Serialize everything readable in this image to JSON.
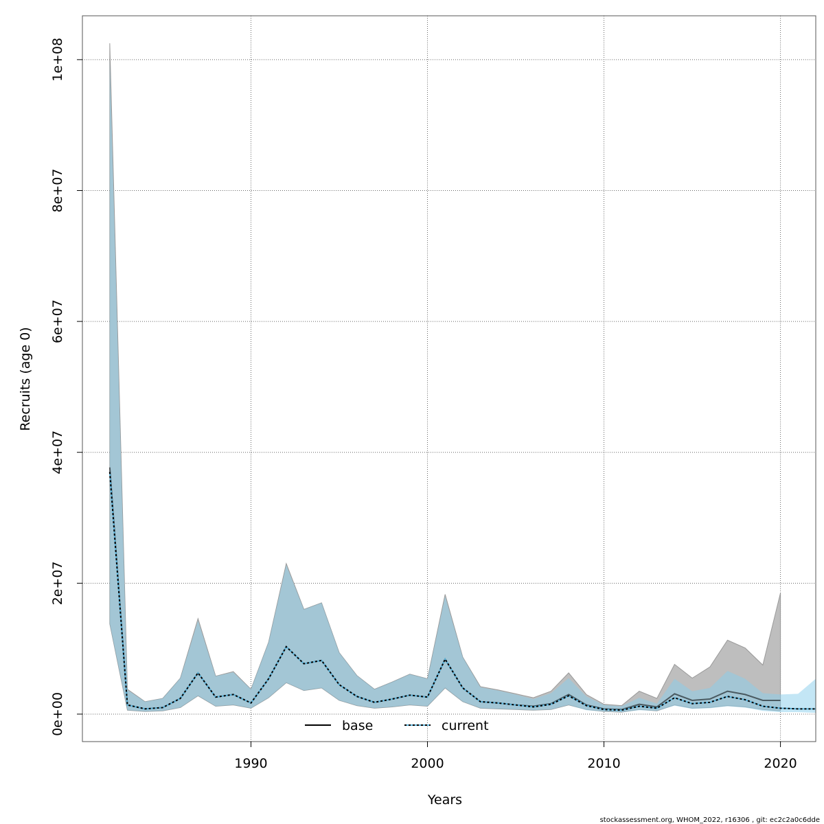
{
  "chart_data": {
    "type": "area",
    "title": "",
    "xlabel": "Years",
    "ylabel": "Recruits (age 0)",
    "xlim": [
      1980.45,
      2022.0
    ],
    "ylim": [
      -4200000,
      106700000
    ],
    "x_ticks": [
      1990,
      2000,
      2010,
      2020
    ],
    "x_tick_labels": [
      "1990",
      "2000",
      "2010",
      "2020"
    ],
    "y_ticks": [
      0,
      20000000,
      40000000,
      60000000,
      80000000,
      100000000
    ],
    "y_tick_labels": [
      "0e+00",
      "2e+07",
      "4e+07",
      "6e+07",
      "8e+07",
      "1e+08"
    ],
    "grid": true,
    "legend": {
      "placement": "bottom",
      "entries": [
        "base",
        "current"
      ]
    },
    "footer": "stockassessment.org, WHOM_2022, r16306 , git: ec2c2a0c6dde",
    "colors": {
      "base_band": "#bebebe",
      "current_band": "rgba(135,206,235,0.5)",
      "line": "#000000",
      "current_line_under": "#5ab4dc"
    },
    "series": [
      {
        "name": "base",
        "x": [
          1982,
          1983,
          1984,
          1985,
          1986,
          1987,
          1988,
          1989,
          1990,
          1991,
          1992,
          1993,
          1994,
          1995,
          1996,
          1997,
          1998,
          1999,
          2000,
          2001,
          2002,
          2003,
          2004,
          2005,
          2006,
          2007,
          2008,
          2009,
          2010,
          2011,
          2012,
          2013,
          2014,
          2015,
          2016,
          2017,
          2018,
          2019,
          2020
        ],
        "estimate": [
          37.7,
          1.4,
          0.8,
          1.0,
          2.4,
          6.3,
          2.6,
          3.0,
          1.7,
          5.4,
          10.3,
          7.7,
          8.2,
          4.5,
          2.7,
          1.8,
          2.3,
          2.9,
          2.6,
          8.4,
          4.0,
          1.9,
          1.7,
          1.4,
          1.2,
          1.6,
          3.0,
          1.4,
          0.8,
          0.7,
          1.5,
          1.1,
          3.1,
          2.1,
          2.3,
          3.5,
          3.0,
          2.1,
          2.1
        ],
        "low": [
          13.8,
          0.6,
          0.4,
          0.5,
          1.0,
          2.8,
          1.2,
          1.4,
          0.9,
          2.5,
          4.8,
          3.6,
          4.0,
          2.1,
          1.3,
          0.9,
          1.1,
          1.4,
          1.2,
          4.0,
          1.9,
          0.9,
          0.8,
          0.7,
          0.6,
          0.7,
          1.4,
          0.7,
          0.4,
          0.3,
          0.7,
          0.5,
          1.4,
          0.9,
          1.0,
          1.3,
          1.1,
          0.7,
          0.5
        ],
        "high": [
          102.5,
          3.8,
          1.9,
          2.4,
          5.5,
          14.6,
          5.8,
          6.5,
          3.8,
          11.0,
          23.0,
          16.0,
          17.0,
          9.4,
          5.9,
          3.8,
          4.9,
          6.1,
          5.4,
          18.3,
          8.7,
          4.2,
          3.7,
          3.1,
          2.5,
          3.5,
          6.3,
          3.0,
          1.5,
          1.3,
          3.5,
          2.4,
          7.6,
          5.5,
          7.2,
          11.3,
          10.1,
          7.5,
          18.5
        ]
      },
      {
        "name": "current",
        "x": [
          1982,
          1983,
          1984,
          1985,
          1986,
          1987,
          1988,
          1989,
          1990,
          1991,
          1992,
          1993,
          1994,
          1995,
          1996,
          1997,
          1998,
          1999,
          2000,
          2001,
          2002,
          2003,
          2004,
          2005,
          2006,
          2007,
          2008,
          2009,
          2010,
          2011,
          2012,
          2013,
          2014,
          2015,
          2016,
          2017,
          2018,
          2019,
          2020,
          2021,
          2022
        ],
        "estimate": [
          37.0,
          1.4,
          0.8,
          1.0,
          2.4,
          6.3,
          2.6,
          3.0,
          1.7,
          5.4,
          10.3,
          7.7,
          8.2,
          4.5,
          2.7,
          1.8,
          2.3,
          2.9,
          2.6,
          8.4,
          4.0,
          1.9,
          1.7,
          1.4,
          1.1,
          1.5,
          2.8,
          1.3,
          0.7,
          0.6,
          1.2,
          0.9,
          2.5,
          1.6,
          1.8,
          2.7,
          2.2,
          1.2,
          0.9,
          0.8,
          0.8
        ],
        "low": [
          13.8,
          0.6,
          0.4,
          0.5,
          1.0,
          2.8,
          1.2,
          1.4,
          0.9,
          2.5,
          4.8,
          3.6,
          4.0,
          2.1,
          1.3,
          0.9,
          1.1,
          1.4,
          1.2,
          4.0,
          1.9,
          0.9,
          0.8,
          0.7,
          0.6,
          0.7,
          1.4,
          0.6,
          0.4,
          0.3,
          0.6,
          0.5,
          1.3,
          0.8,
          0.9,
          1.2,
          1.0,
          0.5,
          0.3,
          0.3,
          0.2
        ],
        "high": [
          100.0,
          3.7,
          1.9,
          2.4,
          5.5,
          14.3,
          5.8,
          6.4,
          3.8,
          11.0,
          22.8,
          16.0,
          17.0,
          9.4,
          5.9,
          3.8,
          4.9,
          6.1,
          5.4,
          18.0,
          8.7,
          4.1,
          3.6,
          3.0,
          2.3,
          3.2,
          5.5,
          2.7,
          1.4,
          1.2,
          2.5,
          1.6,
          5.4,
          3.5,
          4.0,
          6.6,
          5.4,
          3.2,
          3.0,
          3.1,
          5.4
        ]
      }
    ]
  }
}
